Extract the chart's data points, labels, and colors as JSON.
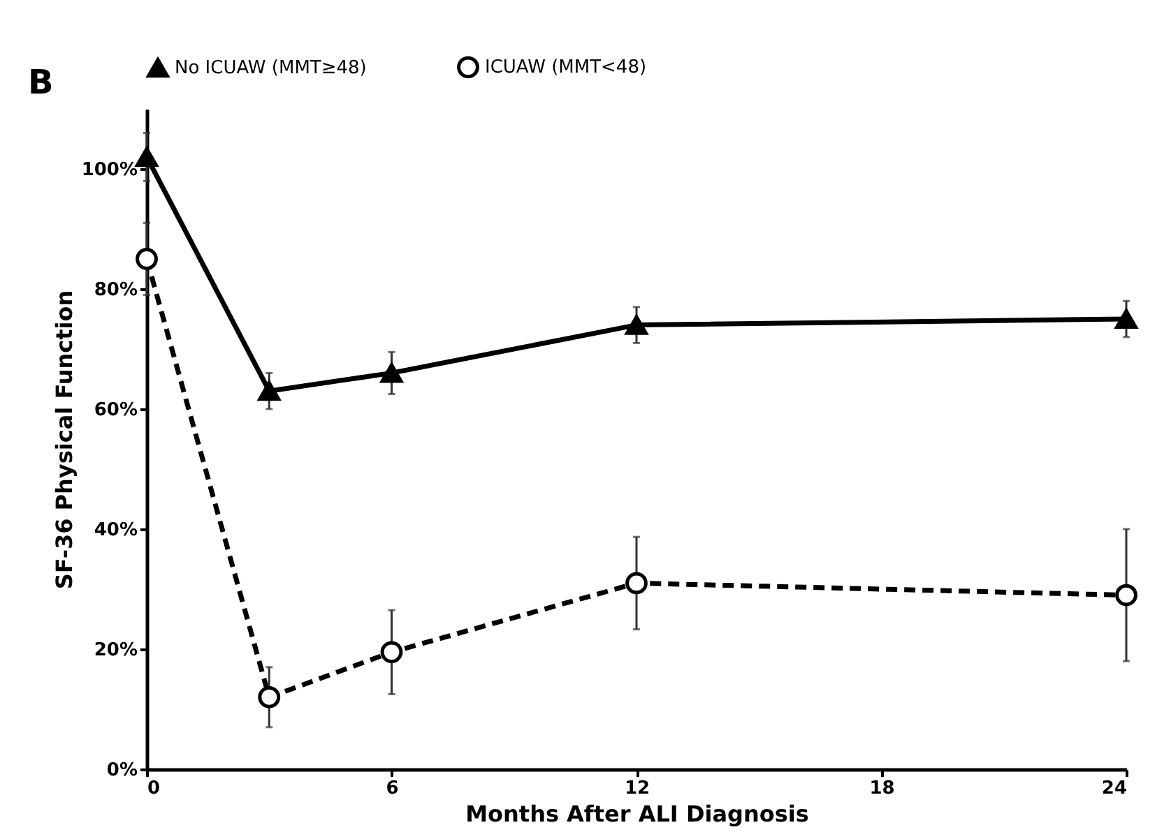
{
  "chart_data": {
    "type": "line",
    "xlabel": "Months After ALI Diagnosis",
    "ylabel": "SF-36 Physical Function",
    "annotations": [
      "B"
    ],
    "x": [
      0,
      3,
      6,
      12,
      24
    ],
    "series": [
      {
        "name": "No ICUAW (MMT≥48)",
        "color": "#000000",
        "values": [
          102,
          63,
          66,
          74,
          75
        ],
        "errors": [
          4,
          3,
          3.5,
          3,
          3
        ],
        "marker": "triangle",
        "line_style": "solid"
      },
      {
        "name": "ICUAW (MMT<48)",
        "color": "#000000",
        "values": [
          85,
          12,
          19.5,
          31,
          29
        ],
        "errors": [
          6,
          5,
          7,
          7.7,
          11
        ],
        "marker": "circle",
        "line_style": "dashed"
      }
    ],
    "xlim": [
      0,
      24
    ],
    "xticks": [
      0,
      6,
      12,
      18,
      24
    ],
    "ylim": [
      0,
      110
    ],
    "yticks": [
      {
        "value": 0,
        "label": "0%"
      },
      {
        "value": 20,
        "label": "20%"
      },
      {
        "value": 40,
        "label": "40%"
      },
      {
        "value": 60,
        "label": "60%"
      },
      {
        "value": 80,
        "label": "80%"
      },
      {
        "value": 100,
        "label": "100%"
      }
    ],
    "grid": false,
    "legend": "top"
  }
}
